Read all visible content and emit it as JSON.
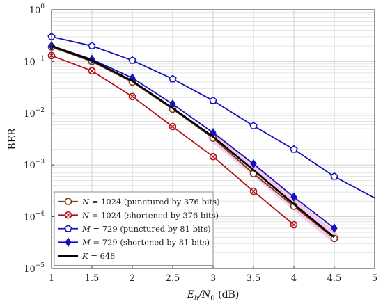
{
  "chart_data": {
    "type": "line",
    "xlabel": "E_b/N_0 (dB)",
    "ylabel": "BER",
    "xlim": [
      1,
      5
    ],
    "ylim": [
      1e-05,
      1
    ],
    "yscale": "log",
    "grid": true,
    "legend_position": "bottom-left",
    "x_ticks": [
      "1",
      "1.5",
      "2",
      "2.5",
      "3",
      "3.5",
      "4",
      "4.5",
      "5"
    ],
    "y_ticks": [
      {
        "base": "10",
        "exp": "0"
      },
      {
        "base": "10",
        "exp": "−1"
      },
      {
        "base": "10",
        "exp": "−2"
      },
      {
        "base": "10",
        "exp": "−3"
      },
      {
        "base": "10",
        "exp": "−4"
      },
      {
        "base": "10",
        "exp": "−5"
      }
    ],
    "series": [
      {
        "name": "N = 1024 (punctured by 376 bits)",
        "legend": {
          "var": "N",
          "rest": " = 1024 (punctured by 376 bits)"
        },
        "color": "#7a3a0c",
        "marker": "circle",
        "x": [
          1,
          1.5,
          2,
          2.5,
          3,
          3.5,
          4,
          4.5
        ],
        "y": [
          0.19,
          0.1,
          0.04,
          0.012,
          0.0033,
          0.00068,
          0.00016,
          3.8e-05
        ]
      },
      {
        "name": "N = 1024 (shortened by 376 bits)",
        "legend": {
          "var": "N",
          "rest": " = 1024 (shortened by 376 bits)"
        },
        "color": "#b3141a",
        "marker": "circle-x",
        "x": [
          1,
          1.5,
          2,
          2.5,
          3,
          3.5,
          4
        ],
        "y": [
          0.13,
          0.066,
          0.021,
          0.0055,
          0.00145,
          0.00031,
          7e-05
        ]
      },
      {
        "name": "M = 729 (punctured by 81 bits)",
        "legend": {
          "var": "M",
          "rest": " = 729 (punctured by 81 bits)"
        },
        "color": "#1313b8",
        "marker": "pentagon",
        "x": [
          1,
          1.5,
          2,
          2.5,
          3,
          3.5,
          4,
          4.5,
          5
        ],
        "y": [
          0.3,
          0.2,
          0.105,
          0.046,
          0.0175,
          0.0057,
          0.002,
          0.0006,
          0.00023
        ]
      },
      {
        "name": "M = 729 (shortened by 81 bits)",
        "legend": {
          "var": "M",
          "rest": " = 729 (shortened by 81 bits)"
        },
        "color": "#1313b8",
        "marker": "diamond",
        "x": [
          1,
          1.5,
          2,
          2.5,
          3,
          3.5,
          4,
          4.5
        ],
        "y": [
          0.2,
          0.11,
          0.048,
          0.015,
          0.0042,
          0.00105,
          0.00024,
          6e-05
        ]
      },
      {
        "name": "K = 648",
        "legend": {
          "var": "K",
          "rest": " = 648"
        },
        "color": "#000000",
        "marker": "none",
        "x": [
          1,
          1.5,
          2,
          2.5,
          3,
          3.5,
          4,
          4.5
        ],
        "y": [
          0.2,
          0.105,
          0.042,
          0.0125,
          0.0035,
          0.0008,
          0.000175,
          4e-05
        ]
      }
    ],
    "highlight_color": "#f3b6e3"
  }
}
